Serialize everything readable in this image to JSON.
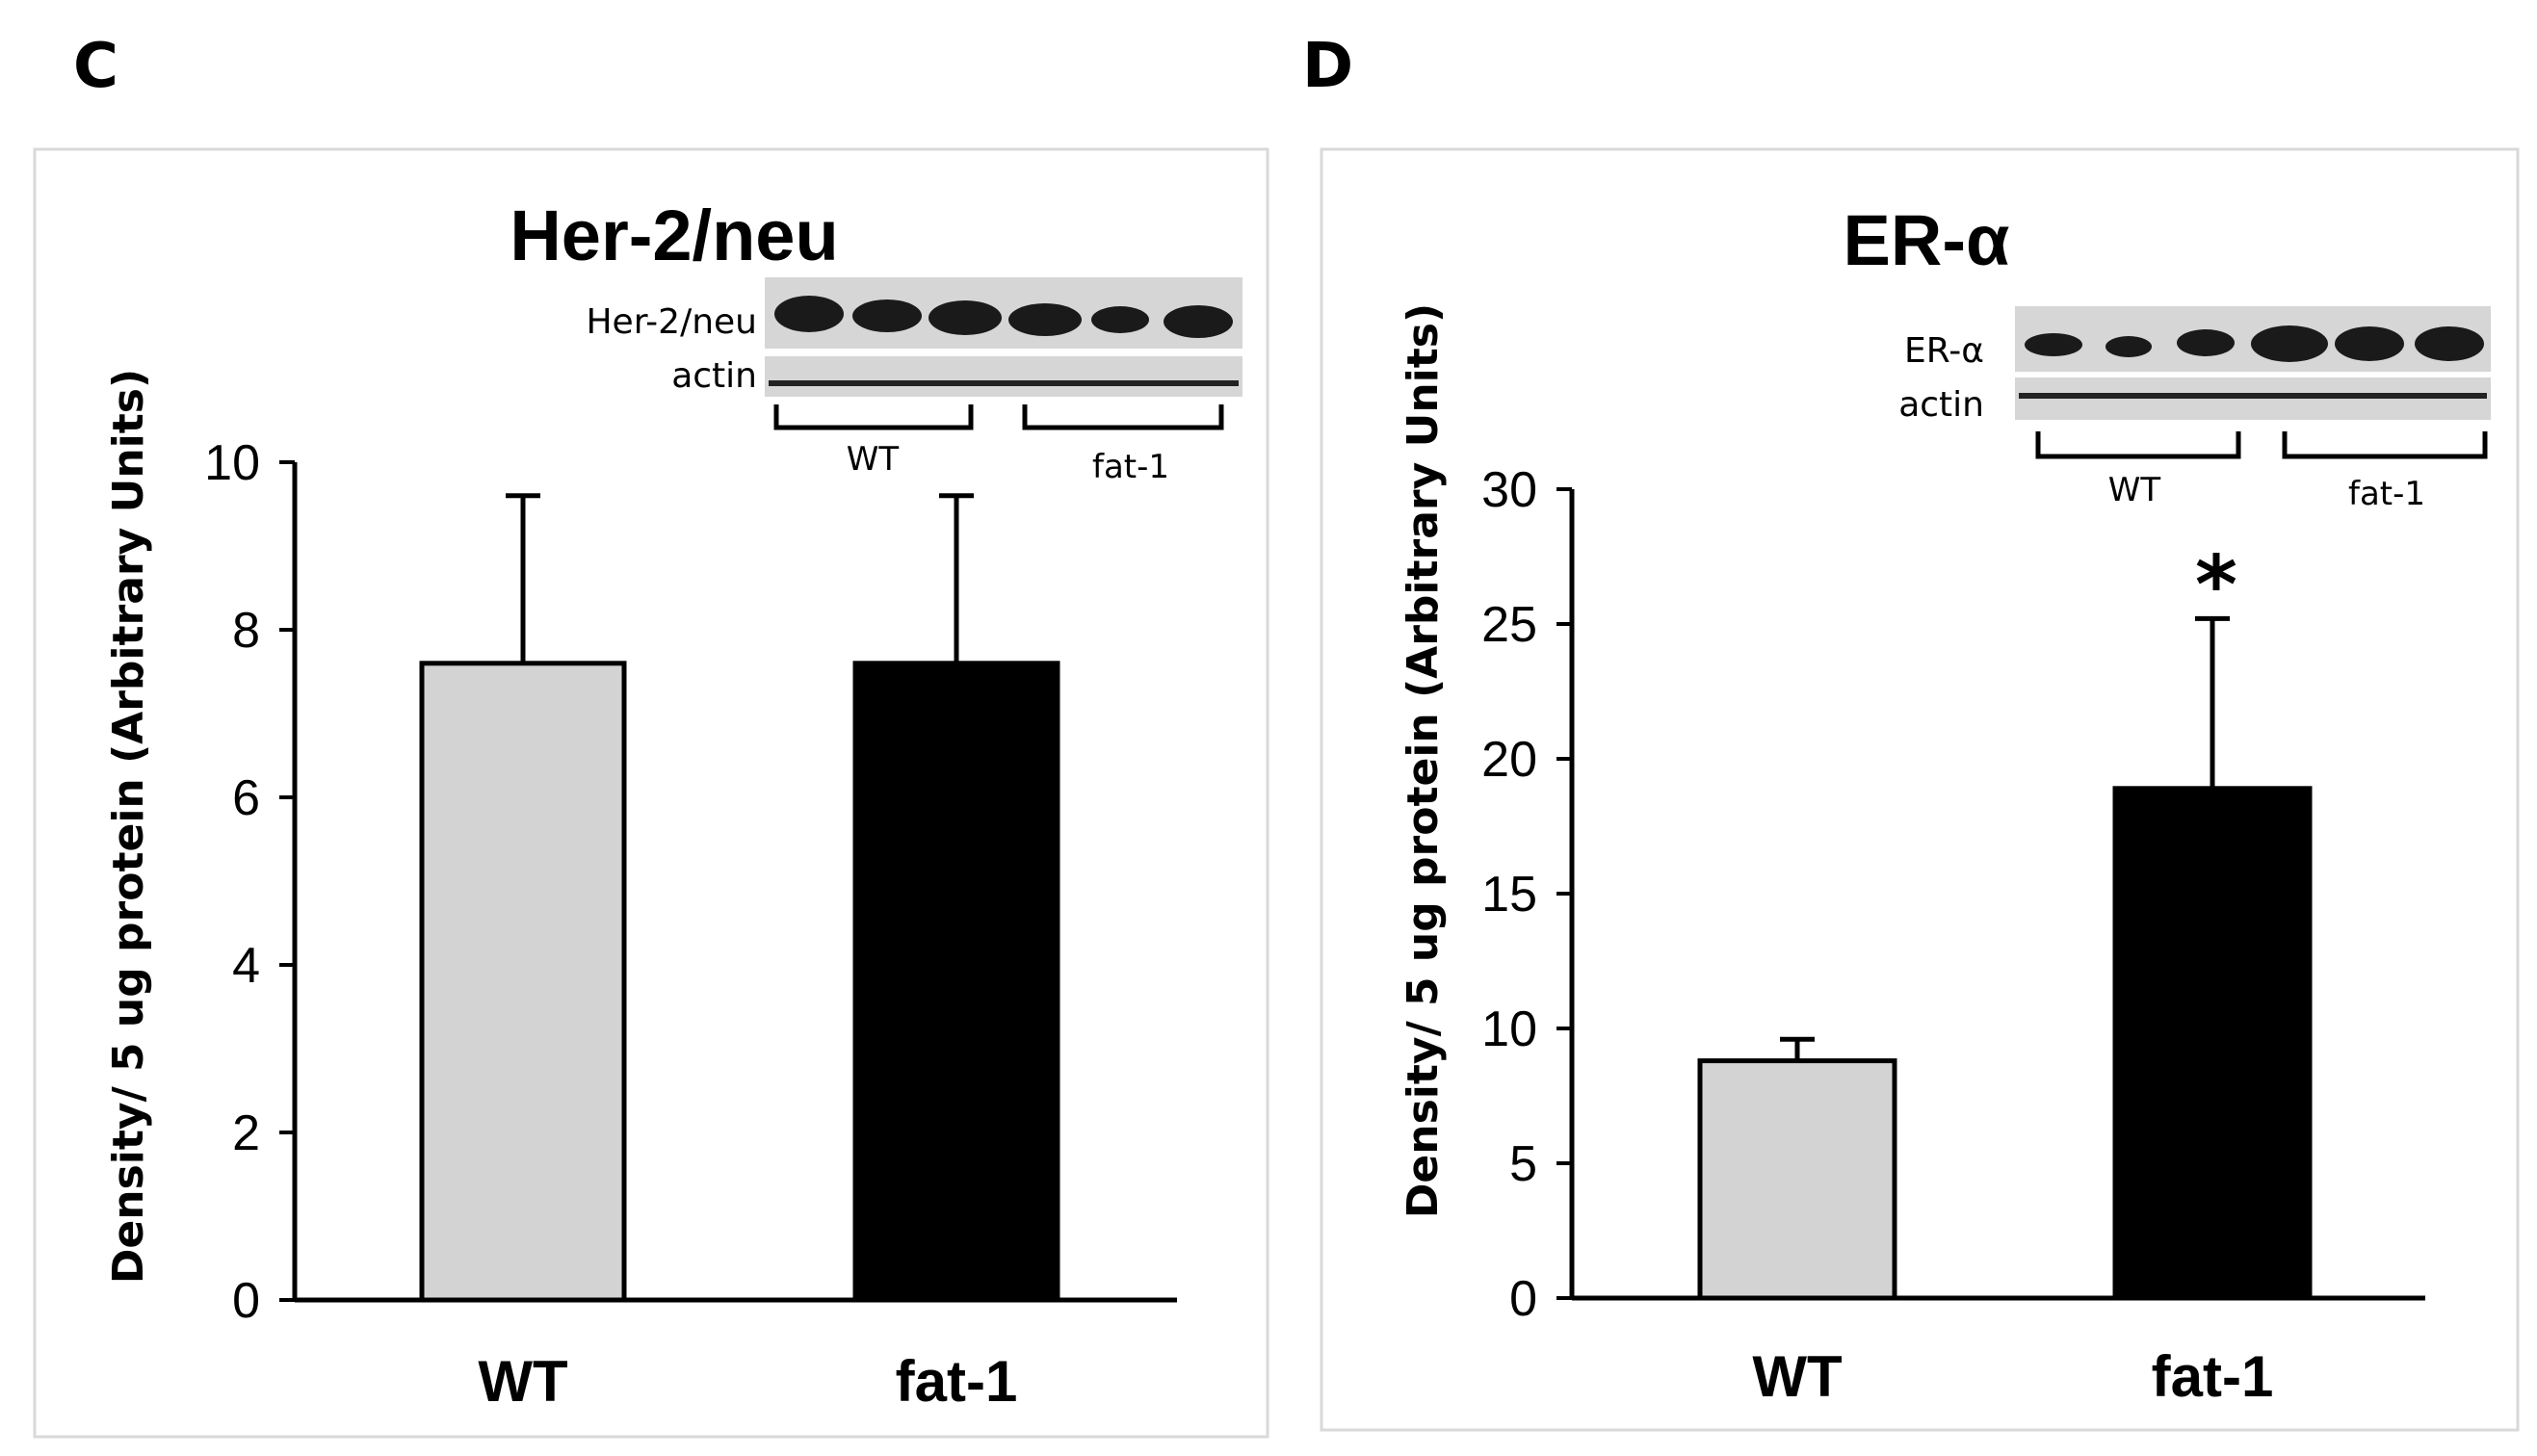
{
  "chart_data": [
    {
      "type": "bar",
      "panel_label": "C",
      "title": "Her-2/neu",
      "ylabel": "Density/ 5 ug protein (Arbitrary Units)",
      "xlabel": "",
      "categories": [
        "WT",
        "fat-1"
      ],
      "values": [
        7.6,
        7.6
      ],
      "error_upper": [
        9.6,
        9.6
      ],
      "bar_colors": [
        "#d3d3d3",
        "#000000"
      ],
      "ylim": [
        0,
        10
      ],
      "yticks": [
        "0",
        "2",
        "4",
        "6",
        "8",
        "10"
      ],
      "grid": false,
      "annotations": [],
      "inset": {
        "rows": [
          "Her-2/neu",
          "actin"
        ],
        "groups": [
          "WT",
          "fat-1"
        ]
      }
    },
    {
      "type": "bar",
      "panel_label": "D",
      "title": "ER-α",
      "ylabel": "Density/ 5 ug protein (Arbitrary Units)",
      "xlabel": "",
      "categories": [
        "WT",
        "fat-1"
      ],
      "values": [
        8.8,
        18.9
      ],
      "error_upper": [
        9.6,
        25.2
      ],
      "bar_colors": [
        "#d3d3d3",
        "#000000"
      ],
      "ylim": [
        0,
        30
      ],
      "yticks": [
        "0",
        "5",
        "10",
        "15",
        "20",
        "25",
        "30"
      ],
      "grid": false,
      "annotations": [
        "*"
      ],
      "inset": {
        "rows": [
          "ER-α",
          "actin"
        ],
        "groups": [
          "WT",
          "fat-1"
        ]
      }
    }
  ]
}
